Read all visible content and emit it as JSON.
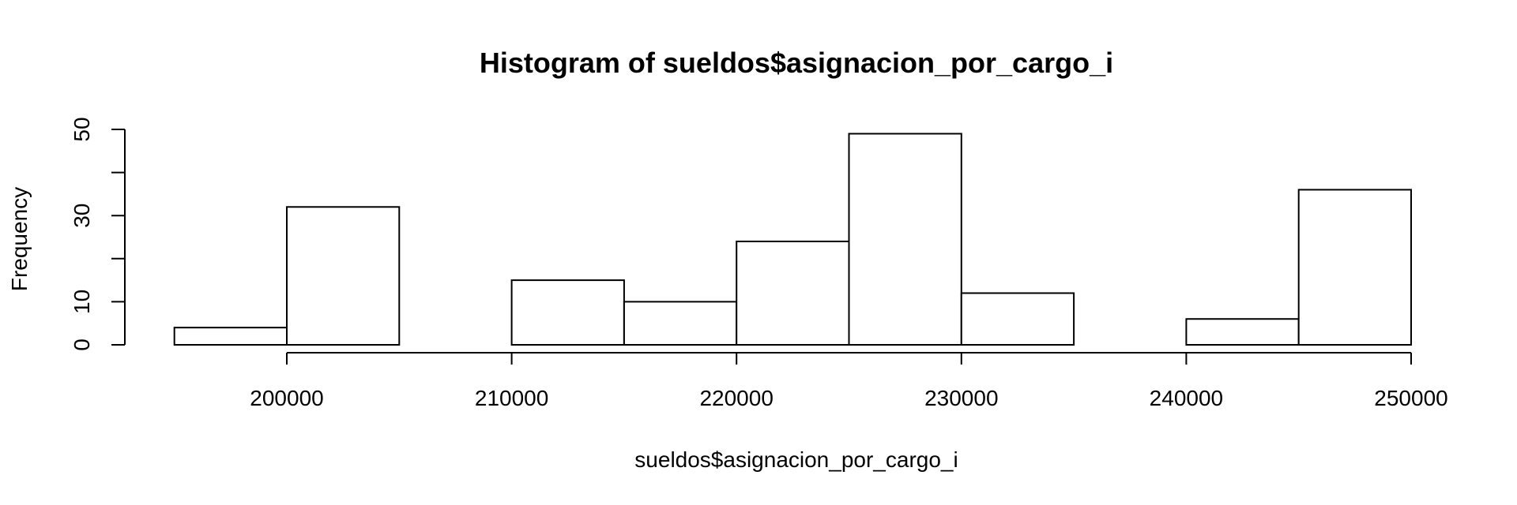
{
  "chart_data": {
    "type": "bar",
    "title": "Histogram of sueldos$asignacion_por_cargo_i",
    "xlabel": "sueldos$asignacion_por_cargo_i",
    "ylabel": "Frequency",
    "bins": [
      {
        "start": 195000,
        "end": 200000,
        "count": 4
      },
      {
        "start": 200000,
        "end": 205000,
        "count": 32
      },
      {
        "start": 205000,
        "end": 210000,
        "count": 0
      },
      {
        "start": 210000,
        "end": 215000,
        "count": 15
      },
      {
        "start": 215000,
        "end": 220000,
        "count": 10
      },
      {
        "start": 220000,
        "end": 225000,
        "count": 24
      },
      {
        "start": 225000,
        "end": 230000,
        "count": 49
      },
      {
        "start": 230000,
        "end": 235000,
        "count": 12
      },
      {
        "start": 235000,
        "end": 240000,
        "count": 0
      },
      {
        "start": 240000,
        "end": 245000,
        "count": 6
      },
      {
        "start": 245000,
        "end": 250000,
        "count": 36
      }
    ],
    "x_ticks": [
      200000,
      210000,
      220000,
      230000,
      240000,
      250000
    ],
    "y_ticks": [
      0,
      10,
      20,
      30,
      40,
      50
    ],
    "y_tick_labels": [
      "0",
      "10",
      "",
      "30",
      "",
      "50"
    ],
    "xlim": [
      195000,
      250000
    ],
    "ylim": [
      0,
      50
    ],
    "grid": false,
    "legend": "none"
  }
}
